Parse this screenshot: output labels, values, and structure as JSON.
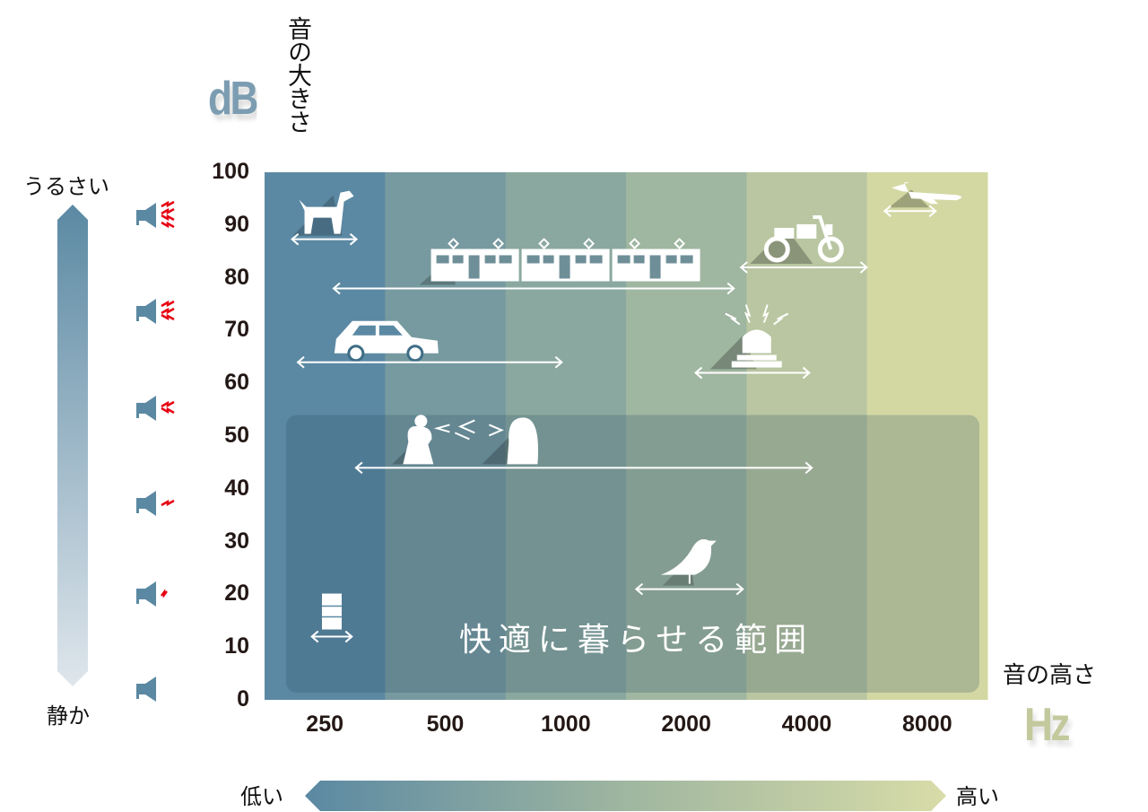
{
  "chart_data": {
    "type": "range-infographic",
    "y_axis": {
      "label": "音の大きさ",
      "unit": "dB",
      "range": [
        0,
        100
      ],
      "ticks": [
        0,
        10,
        20,
        30,
        40,
        50,
        60,
        70,
        80,
        90,
        100
      ]
    },
    "x_axis": {
      "label": "音の高さ",
      "unit": "Hz",
      "scale": "log2",
      "categories": [
        "250",
        "500",
        "1000",
        "2000",
        "4000",
        "8000"
      ]
    },
    "column_colors": [
      "#5b89a3",
      "#779aa0",
      "#8aa89f",
      "#9fb6a0",
      "#b9c6a1",
      "#d3d8a3"
    ],
    "comfort_zone": {
      "label": "快適に暮らせる範囲",
      "db_range": [
        0,
        54
      ],
      "hz_range": [
        200,
        11000
      ]
    },
    "items": [
      {
        "icon": "dog-icon",
        "db": 89,
        "hz_range": [
          207,
          300
        ]
      },
      {
        "icon": "train-icon",
        "db": 79,
        "hz_range": [
          263,
          2630
        ]
      },
      {
        "icon": "car-icon",
        "db": 65,
        "hz_range": [
          214,
          977
        ]
      },
      {
        "icon": "conversation-icon",
        "db": 45,
        "hz_range": [
          299,
          4120
        ]
      },
      {
        "icon": "bird-icon",
        "db": 22,
        "hz_range": [
          1500,
          2770
        ]
      },
      {
        "icon": "refrigerator-icon",
        "db": 13,
        "hz_range": [
          232,
          292
        ]
      },
      {
        "icon": "motorcycle-icon",
        "db": 83,
        "hz_range": [
          2740,
          5650
        ]
      },
      {
        "icon": "siren-icon",
        "db": 63,
        "hz_range": [
          2110,
          4060
        ]
      },
      {
        "icon": "airplane-icon",
        "db": 94,
        "hz_range": [
          6260,
          8400
        ]
      }
    ]
  },
  "loudness_scale": {
    "loud_label": "うるさい",
    "quiet_label": "静か",
    "speaker_levels": [
      4,
      3,
      2,
      1,
      0.5,
      0
    ]
  },
  "pitch_scale": {
    "low_label": "低い",
    "high_label": "高い"
  },
  "logos": {
    "db": "dB",
    "hz": "Hz"
  },
  "colors": {
    "loud_red": "#e60012",
    "speaker": "#5b89a3",
    "text": "#231815"
  }
}
